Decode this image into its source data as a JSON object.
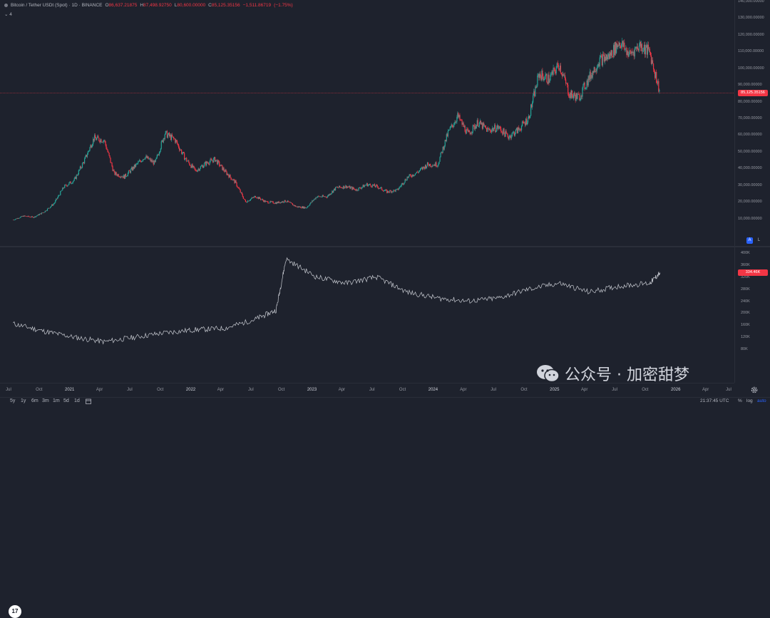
{
  "legend": {
    "symbol": "Bitcoin / Tether USDt (Spot) · 1D · BINANCE",
    "open_key": "O",
    "open": "86,637.21875",
    "high_key": "H",
    "high": "87,498.92750",
    "low_key": "L",
    "low": "80,600.00000",
    "close_key": "C",
    "close": "85,125.35156",
    "change": "−1,511.86719",
    "change_pct": "(−1.75%)"
  },
  "sub_legend": {
    "label": "4"
  },
  "price_axis": {
    "ticks": [
      "140,000.00000",
      "130,000.00000",
      "120,000.00000",
      "110,000.00000",
      "100,000.00000",
      "90,000.00000",
      "80,000.00000",
      "70,000.00000",
      "60,000.00000",
      "50,000.00000",
      "40,000.00000",
      "30,000.00000",
      "20,000.00000",
      "10,000.00000"
    ],
    "current_price": "85,125.35156",
    "scale_auto": "A",
    "scale_log": "L"
  },
  "sub_axis": {
    "ticks": [
      "400K",
      "360K",
      "320K",
      "280K",
      "240K",
      "200K",
      "160K",
      "120K",
      "80K"
    ],
    "current_value": "334.46K"
  },
  "time_axis": {
    "labels": [
      "Jul",
      "Oct",
      "2021",
      "Apr",
      "Jul",
      "Oct",
      "2022",
      "Apr",
      "Jul",
      "Oct",
      "2023",
      "Apr",
      "Jul",
      "Oct",
      "2024",
      "Apr",
      "Jul",
      "Oct",
      "2025",
      "Apr",
      "Jul",
      "Oct",
      "2026",
      "Apr",
      "Jul"
    ]
  },
  "toolbar": {
    "ranges": [
      "5y",
      "1y",
      "6m",
      "3m",
      "1m",
      "5d",
      "1d"
    ],
    "clock": "21:37:45 UTC",
    "percent": "%",
    "log": "log",
    "auto": "auto"
  },
  "logo": {
    "text": "17"
  },
  "watermark": {
    "text": "公众号 · 加密甜梦"
  },
  "colors": {
    "background": "#1e222d",
    "up": "#26a69a",
    "down": "#f23645",
    "line": "#c8cbd2",
    "accent": "#2962ff"
  },
  "chart_data": [
    {
      "type": "candlestick",
      "title": "Bitcoin / Tether USDt (Spot) · 1D · BINANCE",
      "ylim": [
        0,
        140000
      ],
      "x": [
        "2020-07",
        "2020-08",
        "2020-09",
        "2020-10",
        "2020-11",
        "2020-12",
        "2021-01",
        "2021-02",
        "2021-03",
        "2021-04",
        "2021-05",
        "2021-06",
        "2021-07",
        "2021-08",
        "2021-09",
        "2021-10",
        "2021-11",
        "2021-12",
        "2022-01",
        "2022-02",
        "2022-03",
        "2022-04",
        "2022-05",
        "2022-06",
        "2022-07",
        "2022-08",
        "2022-09",
        "2022-10",
        "2022-11",
        "2022-12",
        "2023-01",
        "2023-02",
        "2023-03",
        "2023-04",
        "2023-05",
        "2023-06",
        "2023-07",
        "2023-08",
        "2023-09",
        "2023-10",
        "2023-11",
        "2023-12",
        "2024-01",
        "2024-02",
        "2024-03",
        "2024-04",
        "2024-05",
        "2024-06",
        "2024-07",
        "2024-08",
        "2024-09",
        "2024-10",
        "2024-11",
        "2024-12",
        "2025-01",
        "2025-02",
        "2025-03",
        "2025-04",
        "2025-05",
        "2025-06",
        "2025-07",
        "2025-08",
        "2025-09",
        "2025-10",
        "2025-11"
      ],
      "close": [
        9200,
        11500,
        10800,
        13800,
        19000,
        29000,
        33000,
        45000,
        58000,
        57000,
        37000,
        35000,
        41000,
        47000,
        43000,
        61000,
        57000,
        46000,
        38500,
        43000,
        45500,
        38000,
        31700,
        19900,
        23300,
        20000,
        19400,
        20500,
        17100,
        16500,
        23100,
        23100,
        28400,
        29200,
        27200,
        30400,
        29200,
        26000,
        27000,
        34600,
        37700,
        42300,
        42500,
        61200,
        71300,
        60600,
        67500,
        62700,
        64600,
        59000,
        63300,
        70300,
        96400,
        93400,
        102400,
        84300,
        82500,
        94200,
        104600,
        107100,
        115700,
        108200,
        114000,
        109500,
        85100
      ]
    },
    {
      "type": "line",
      "ylim": [
        80000,
        400000
      ],
      "ticks": [
        "400K",
        "360K",
        "320K",
        "280K",
        "240K",
        "200K",
        "160K",
        "120K",
        "80K"
      ],
      "x": [
        "2020-07",
        "2020-10",
        "2021-01",
        "2021-04",
        "2021-07",
        "2021-10",
        "2022-01",
        "2022-04",
        "2022-07",
        "2022-09",
        "2022-10",
        "2023-01",
        "2023-04",
        "2023-07",
        "2023-10",
        "2024-01",
        "2024-04",
        "2024-07",
        "2024-10",
        "2025-01",
        "2025-04",
        "2025-07",
        "2025-10",
        "2025-11"
      ],
      "values": [
        165000,
        140000,
        120000,
        105000,
        120000,
        135000,
        145000,
        150000,
        180000,
        210000,
        380000,
        320000,
        300000,
        320000,
        270000,
        250000,
        240000,
        250000,
        280000,
        300000,
        270000,
        290000,
        300000,
        334460
      ],
      "last_value": "334.46K"
    }
  ]
}
